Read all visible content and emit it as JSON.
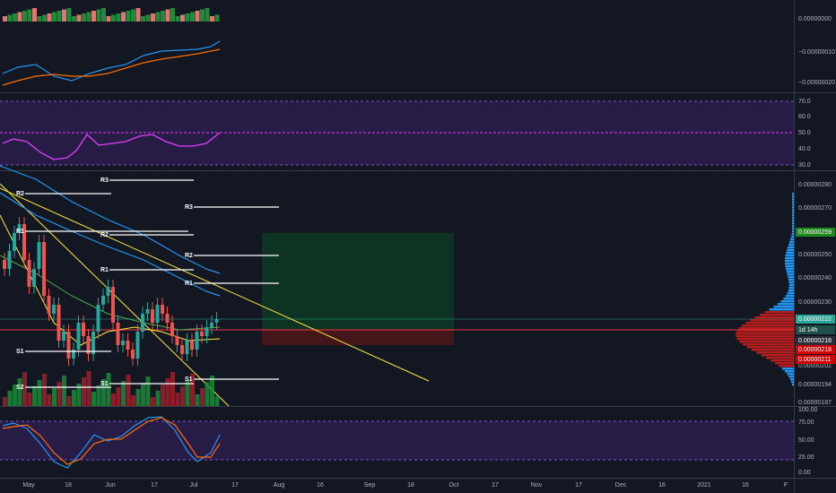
{
  "macd_pane": {
    "axis_labels": [
      "0.00000000",
      "−0.00000010",
      "−0.00000020"
    ]
  },
  "rsi_pane": {
    "axis_labels": [
      "70.0",
      "60.0",
      "50.0",
      "40.0",
      "30.0"
    ]
  },
  "price_pane": {
    "axis_labels": [
      "0.00000280",
      "0.00000270",
      "0.00000250",
      "0.00000240",
      "0.00000230",
      "0.00000202",
      "0.00000194",
      "0.00000187"
    ],
    "badges": [
      "0.00000259",
      "0.00000222",
      "1d 14h",
      "0.00000218",
      "0.00000218",
      "0.00000211"
    ],
    "pivots_left": [
      "R2",
      "R1",
      "S1",
      "S2"
    ],
    "pivots_middle": [
      "R3",
      "R2",
      "R1",
      "S1"
    ],
    "pivots_right": [
      "R3",
      "R2",
      "R1",
      "S1"
    ]
  },
  "stoch_pane": {
    "axis_labels": [
      "100.00",
      "75.00",
      "50.00",
      "25.00",
      "0.00"
    ]
  },
  "time_axis": [
    "May",
    "18",
    "Jun",
    "17",
    "Jul",
    "17",
    "Aug",
    "16",
    "Sep",
    "18",
    "Oct",
    "17",
    "Nov",
    "17",
    "Dec",
    "16",
    "2021",
    "16",
    "F"
  ]
}
